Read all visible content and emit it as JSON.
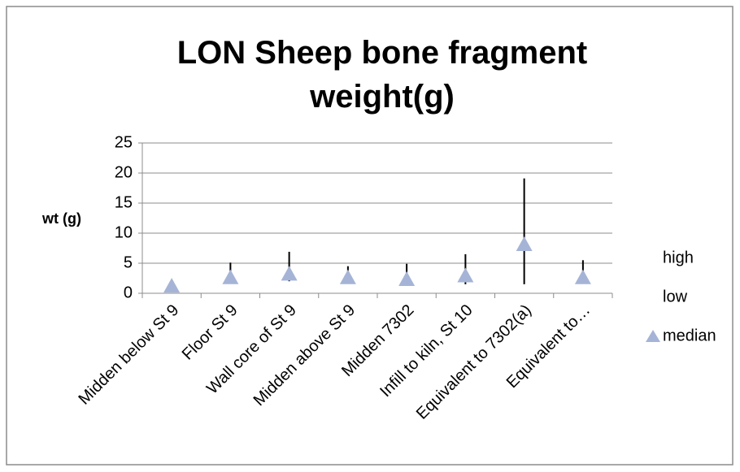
{
  "chart_data": {
    "type": "high-low-median",
    "title": "LON Sheep bone fragment weight(g)",
    "y_label": "wt (g)",
    "categories": [
      "Midden below St 9",
      "Floor St 9",
      "Wall core of St 9",
      "Midden above St 9",
      "Midden 7302",
      "Infill to kiln, St 10",
      "Equivalent to 7302(a)",
      "Equivalent to…"
    ],
    "series": [
      {
        "name": "high",
        "color": "#000000",
        "values": [
          1.5,
          5.1,
          6.9,
          4.5,
          4.9,
          6.5,
          19.1,
          5.5
        ]
      },
      {
        "name": "low",
        "color": "#000000",
        "values": [
          1.0,
          1.8,
          2.0,
          2.0,
          1.7,
          1.5,
          1.5,
          2.0
        ]
      },
      {
        "name": "median",
        "color": "#a5b4d6",
        "values": [
          1.2,
          2.6,
          3.2,
          2.6,
          2.3,
          2.9,
          8.1,
          2.6
        ]
      }
    ],
    "ylim": [
      0,
      25
    ],
    "yticks": [
      0,
      5,
      10,
      15,
      20,
      25
    ],
    "grid": true,
    "legend": "right"
  }
}
